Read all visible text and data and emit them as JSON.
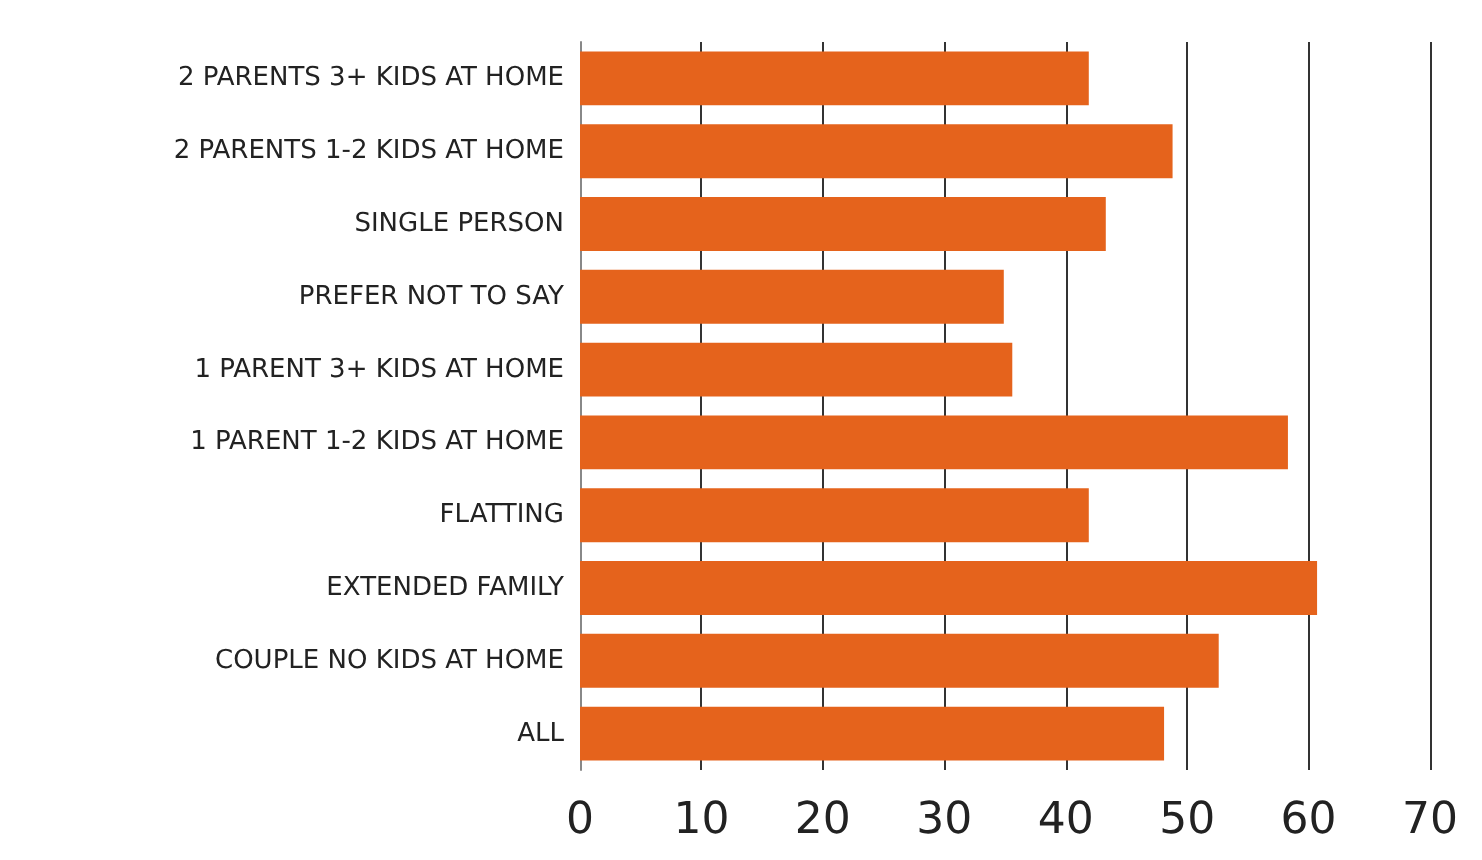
{
  "chart_data": {
    "type": "bar",
    "orientation": "horizontal",
    "categories": [
      "2 PARENTS 3+ KIDS AT HOME",
      "2 PARENTS 1-2 KIDS AT HOME",
      "SINGLE PERSON",
      "PREFER NOT TO SAY",
      "1 PARENT 3+ KIDS AT HOME",
      "1 PARENT 1-2 KIDS AT HOME",
      "FLATTING",
      "EXTENDED FAMILY",
      "COUPLE NO KIDS AT HOME",
      "ALL"
    ],
    "values": [
      41.9,
      48.8,
      43.3,
      34.9,
      35.6,
      58.3,
      41.9,
      60.7,
      52.6,
      48.1
    ],
    "color": "#e5631c",
    "xlim": [
      0,
      70
    ],
    "xticks": [
      0,
      10,
      20,
      30,
      40,
      50,
      60,
      70
    ],
    "grid": "x"
  }
}
